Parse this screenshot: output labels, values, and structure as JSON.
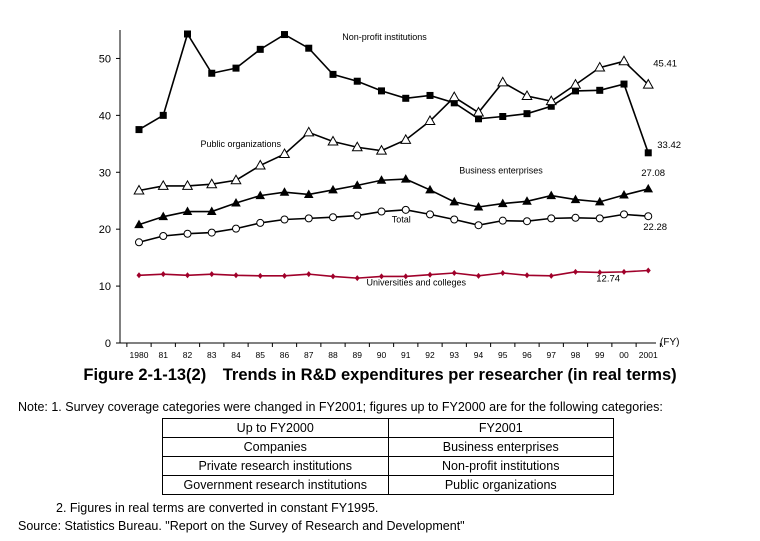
{
  "chart_data": {
    "type": "line",
    "xunit": "(FY)",
    "categories": [
      "1980",
      "81",
      "82",
      "83",
      "84",
      "85",
      "86",
      "87",
      "88",
      "89",
      "90",
      "91",
      "92",
      "93",
      "94",
      "95",
      "96",
      "97",
      "98",
      "99",
      "00",
      "2001"
    ],
    "ylim": [
      0,
      55
    ],
    "yticks": [
      0,
      10,
      20,
      30,
      40,
      50
    ],
    "grid": false,
    "legend": "inline labels",
    "series": [
      {
        "name": "Non-profit institutions",
        "marker": "filled-square",
        "color": "#000000",
        "values": [
          37.5,
          40.0,
          54.3,
          47.4,
          48.3,
          51.6,
          54.2,
          51.8,
          47.2,
          46.0,
          44.3,
          43.0,
          43.5,
          42.2,
          39.4,
          39.8,
          40.3,
          41.6,
          44.3,
          44.4,
          45.5,
          33.42
        ],
        "end_label": "33.42"
      },
      {
        "name": "Public organizations",
        "marker": "open-triangle",
        "color": "#000000",
        "values": [
          26.8,
          27.6,
          27.6,
          27.9,
          28.6,
          31.2,
          33.2,
          37.0,
          35.4,
          34.4,
          33.8,
          35.7,
          39.0,
          43.2,
          40.5,
          45.8,
          43.4,
          42.5,
          45.4,
          48.4,
          49.5,
          45.41
        ],
        "end_label": "45.41"
      },
      {
        "name": "Business enterprises",
        "marker": "filled-triangle",
        "color": "#000000",
        "values": [
          20.8,
          22.2,
          23.1,
          23.1,
          24.6,
          25.9,
          26.5,
          26.1,
          26.9,
          27.7,
          28.6,
          28.8,
          26.9,
          24.8,
          23.9,
          24.5,
          24.9,
          25.9,
          25.2,
          24.8,
          26.0,
          27.08
        ],
        "end_label": "27.08"
      },
      {
        "name": "Total",
        "marker": "open-circle",
        "color": "#000000",
        "values": [
          17.7,
          18.8,
          19.2,
          19.4,
          20.1,
          21.1,
          21.7,
          21.9,
          22.1,
          22.4,
          23.1,
          23.4,
          22.6,
          21.7,
          20.7,
          21.5,
          21.4,
          21.9,
          22.0,
          21.9,
          22.6,
          22.28
        ],
        "end_label": "22.28"
      },
      {
        "name": "Universities and colleges",
        "marker": "filled-diamond",
        "color": "#a0002a",
        "values": [
          11.9,
          12.1,
          11.9,
          12.1,
          11.9,
          11.8,
          11.8,
          12.1,
          11.7,
          11.4,
          11.7,
          11.7,
          12.0,
          12.3,
          11.8,
          12.3,
          11.9,
          11.8,
          12.5,
          12.4,
          12.5,
          12.74
        ],
        "end_label": "12.74"
      }
    ]
  },
  "caption": "Figure 2-1-13(2)　Trends in R&D expenditures per researcher (in real terms)",
  "note_line1": "Note: 1. Survey coverage categories were changed in FY2001; figures up to FY2000 are for the following categories:",
  "table": {
    "headers": [
      "Up to FY2000",
      "FY2001"
    ],
    "rows": [
      [
        "Companies",
        "Business enterprises"
      ],
      [
        "Private research institutions",
        "Non-profit institutions"
      ],
      [
        "Government research institutions",
        "Public organizations"
      ]
    ]
  },
  "note_line2": "2. Figures in real terms are converted in constant FY1995.",
  "source": "Source: Statistics Bureau. \"Report on the Survey of Research and Development\""
}
